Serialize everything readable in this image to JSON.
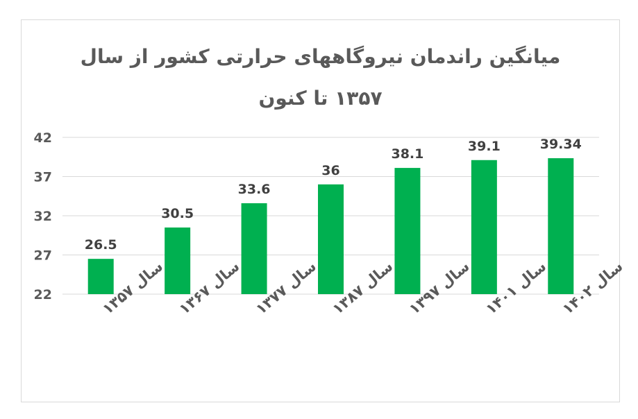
{
  "chart_data": {
    "type": "bar",
    "title_line1": "میانگین راندمان نیروگاههای حرارتی کشور از سال",
    "title_line2": "۱۳۵۷ تا کنون",
    "categories": [
      "سال ۱۳۵۷",
      "سال ۱۳۶۷",
      "سال ۱۳۷۷",
      "سال ۱۳۸۷",
      "سال ۱۳۹۷",
      "سال ۱۴۰۱",
      "سال ۱۴۰۲"
    ],
    "values": [
      26.5,
      30.5,
      33.6,
      36,
      38.1,
      39.1,
      39.34
    ],
    "value_labels": [
      "26.5",
      "30.5",
      "33.6",
      "36",
      "38.1",
      "39.1",
      "39.34"
    ],
    "ylim": [
      22,
      42
    ],
    "yticks": [
      "22",
      "27",
      "32",
      "37",
      "42"
    ],
    "grid": true,
    "bar_color": "#00b050"
  }
}
